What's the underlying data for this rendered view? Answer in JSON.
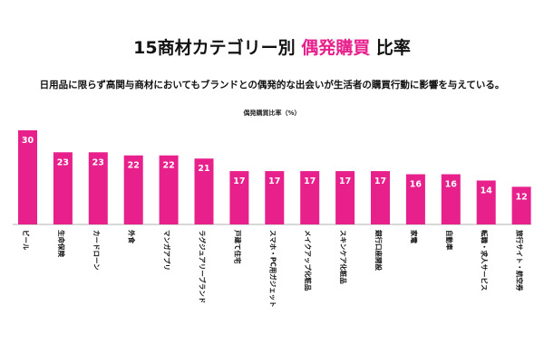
{
  "header": {
    "title_prefix": "15商材カテゴリー別 ",
    "title_accent": "偶発購買",
    "title_suffix": " 比率",
    "subtitle": "日用品に限らず高関与商材においてもブランドとの偶発的な出会いが生活者の購買行動に影響を与えている。"
  },
  "colors": {
    "bar": "#e8208c",
    "axis": "#999999",
    "accent": "#e8208c"
  },
  "chart_data": {
    "type": "bar",
    "title": "偶発購買比率（%）",
    "xlabel": "",
    "ylabel": "",
    "ylim": [
      0,
      30
    ],
    "grid": false,
    "categories": [
      "ビール",
      "生命保険",
      "カードローン",
      "外食",
      "マンガアプリ",
      "ラグジュアリーブランド",
      "戸建て住宅",
      "スマホ・PC用ガジェット",
      "メイクアップ化粧品",
      "スキンケア化粧品",
      "銀行口座開設",
      "家電",
      "自動車",
      "転職・求人サービス",
      "旅行サイト・航空券"
    ],
    "values": [
      30,
      23,
      23,
      22,
      22,
      21,
      17,
      17,
      17,
      17,
      17,
      16,
      16,
      14,
      12
    ]
  }
}
